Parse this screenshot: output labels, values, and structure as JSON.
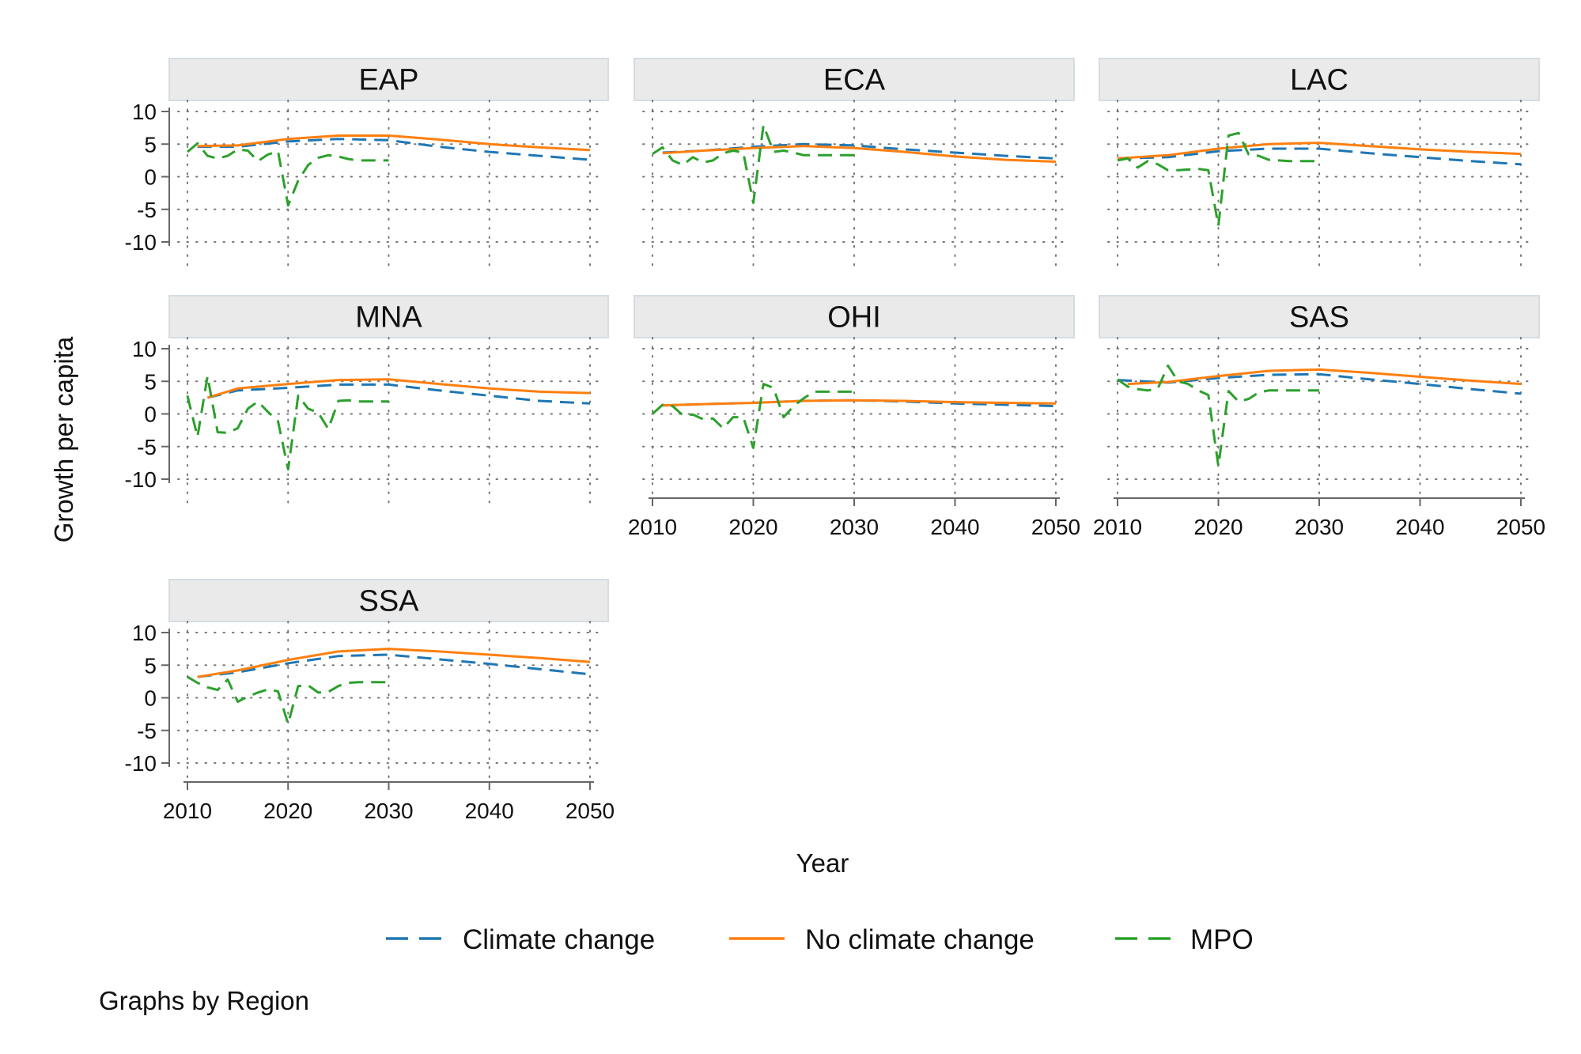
{
  "chart_data": {
    "type": "line",
    "xlabel": "Year",
    "ylabel": "Growth per capita",
    "xlim": [
      2010,
      2050
    ],
    "ylim": [
      -10,
      10
    ],
    "xticks": [
      2010,
      2020,
      2030,
      2040,
      2050
    ],
    "yticks": [
      10,
      5,
      0,
      -5,
      -10
    ],
    "ytick_labels": [
      "10",
      "5",
      "0",
      "-5",
      "-10"
    ],
    "grid": true,
    "legend_position": "bottom",
    "note": "Graphs by Region",
    "series_styles": [
      {
        "key": "cc",
        "name": "Climate change",
        "color": "#1f77b4",
        "dash": "dashed"
      },
      {
        "key": "ncc",
        "name": "No climate change",
        "color": "#ff7f0e",
        "dash": "solid"
      },
      {
        "key": "mpo",
        "name": "MPO",
        "color": "#2ca02c",
        "dash": "dashed"
      }
    ],
    "panels": [
      {
        "title": "EAP",
        "cc": {
          "x": [
            2011,
            2015,
            2020,
            2025,
            2030,
            2035,
            2040,
            2045,
            2050
          ],
          "y": [
            4.6,
            4.6,
            5.4,
            5.8,
            5.6,
            4.6,
            3.8,
            3.2,
            2.6
          ]
        },
        "ncc": {
          "x": [
            2011,
            2015,
            2020,
            2025,
            2030,
            2035,
            2040,
            2045,
            2050
          ],
          "y": [
            4.7,
            4.8,
            5.8,
            6.3,
            6.3,
            5.7,
            5.0,
            4.5,
            4.1
          ]
        },
        "mpo": {
          "x": [
            2010,
            2011,
            2012,
            2013,
            2014,
            2015,
            2016,
            2017,
            2018,
            2019,
            2020,
            2021,
            2022,
            2023,
            2024,
            2025,
            2026,
            2027,
            2028,
            2029,
            2030
          ],
          "y": [
            3.8,
            5.1,
            3.2,
            2.8,
            3.2,
            4.2,
            4.0,
            2.4,
            3.4,
            3.9,
            -4.4,
            -0.6,
            1.8,
            2.9,
            3.3,
            3.1,
            2.7,
            2.5,
            2.5,
            2.5,
            2.5
          ]
        }
      },
      {
        "title": "ECA",
        "cc": {
          "x": [
            2011,
            2015,
            2020,
            2025,
            2030,
            2035,
            2040,
            2045,
            2050
          ],
          "y": [
            3.7,
            4.0,
            4.6,
            5.0,
            4.8,
            4.2,
            3.7,
            3.2,
            2.8
          ]
        },
        "ncc": {
          "x": [
            2011,
            2015,
            2020,
            2025,
            2030,
            2035,
            2040,
            2045,
            2050
          ],
          "y": [
            3.6,
            4.0,
            4.4,
            4.7,
            4.4,
            3.8,
            3.1,
            2.6,
            2.3
          ]
        },
        "mpo": {
          "x": [
            2010,
            2011,
            2012,
            2013,
            2014,
            2015,
            2016,
            2017,
            2018,
            2019,
            2020,
            2021,
            2022,
            2023,
            2024,
            2025,
            2026,
            2027,
            2028,
            2029,
            2030
          ],
          "y": [
            3.5,
            4.5,
            2.5,
            1.8,
            3.0,
            2.2,
            2.5,
            3.6,
            4.0,
            3.7,
            -4.0,
            7.9,
            3.8,
            4.0,
            3.7,
            3.3,
            3.3,
            3.3,
            3.3,
            3.3,
            3.3
          ]
        }
      },
      {
        "title": "LAC",
        "cc": {
          "x": [
            2010,
            2015,
            2020,
            2025,
            2030,
            2035,
            2040,
            2045,
            2050
          ],
          "y": [
            2.8,
            3.0,
            3.9,
            4.3,
            4.3,
            3.6,
            3.0,
            2.4,
            1.9
          ]
        },
        "ncc": {
          "x": [
            2010,
            2015,
            2020,
            2025,
            2030,
            2035,
            2040,
            2045,
            2050
          ],
          "y": [
            2.8,
            3.3,
            4.3,
            5.0,
            5.2,
            4.7,
            4.2,
            3.8,
            3.5
          ]
        },
        "mpo": {
          "x": [
            2010,
            2011,
            2012,
            2013,
            2014,
            2015,
            2016,
            2017,
            2018,
            2019,
            2020,
            2021,
            2022,
            2023,
            2024,
            2025,
            2026,
            2027,
            2028,
            2029,
            2030
          ],
          "y": [
            2.5,
            2.8,
            1.4,
            2.4,
            1.9,
            1.0,
            1.0,
            1.1,
            1.2,
            1.0,
            -7.5,
            6.3,
            6.7,
            3.4,
            3.2,
            2.6,
            2.5,
            2.4,
            2.4,
            2.4,
            2.4
          ]
        }
      },
      {
        "title": "MNA",
        "cc": {
          "x": [
            2012,
            2015,
            2020,
            2025,
            2030,
            2035,
            2040,
            2045,
            2050
          ],
          "y": [
            2.5,
            3.6,
            4.0,
            4.5,
            4.5,
            3.6,
            2.8,
            2.0,
            1.6
          ]
        },
        "ncc": {
          "x": [
            2012,
            2015,
            2020,
            2025,
            2030,
            2035,
            2040,
            2045,
            2050
          ],
          "y": [
            2.5,
            3.9,
            4.6,
            5.2,
            5.3,
            4.6,
            3.9,
            3.4,
            3.2
          ]
        },
        "mpo": {
          "x": [
            2010,
            2011,
            2012,
            2013,
            2014,
            2015,
            2016,
            2017,
            2018,
            2019,
            2020,
            2021,
            2022,
            2023,
            2024,
            2025,
            2026,
            2027,
            2028,
            2029,
            2030
          ],
          "y": [
            2.8,
            -3.5,
            5.8,
            -2.8,
            -2.9,
            -2.2,
            0.8,
            1.9,
            0.3,
            -1.1,
            -8.5,
            2.8,
            0.8,
            0.2,
            -2.3,
            2.0,
            2.1,
            1.9,
            1.9,
            1.9,
            1.9
          ]
        }
      },
      {
        "title": "OHI",
        "cc": {
          "x": [
            2011,
            2015,
            2020,
            2025,
            2030,
            2035,
            2040,
            2045,
            2050
          ],
          "y": [
            1.3,
            1.5,
            1.7,
            2.0,
            2.1,
            1.9,
            1.6,
            1.4,
            1.2
          ]
        },
        "ncc": {
          "x": [
            2011,
            2015,
            2020,
            2025,
            2030,
            2035,
            2040,
            2045,
            2050
          ],
          "y": [
            1.3,
            1.5,
            1.7,
            2.0,
            2.1,
            2.0,
            1.8,
            1.7,
            1.6
          ]
        },
        "mpo": {
          "x": [
            2010,
            2011,
            2012,
            2013,
            2014,
            2015,
            2016,
            2017,
            2018,
            2019,
            2020,
            2021,
            2022,
            2023,
            2024,
            2025,
            2026,
            2027,
            2028,
            2029,
            2030
          ],
          "y": [
            0.0,
            1.4,
            1.2,
            -0.2,
            -0.1,
            -0.8,
            -0.7,
            -2.2,
            -0.5,
            -0.5,
            -5.2,
            4.6,
            4.0,
            -0.5,
            1.2,
            2.4,
            3.4,
            3.4,
            3.4,
            3.4,
            3.4
          ]
        }
      },
      {
        "title": "SAS",
        "cc": {
          "x": [
            2010,
            2015,
            2020,
            2025,
            2030,
            2035,
            2040,
            2045,
            2050
          ],
          "y": [
            5.2,
            4.8,
            5.5,
            6.0,
            6.1,
            5.3,
            4.6,
            3.8,
            3.1
          ]
        },
        "ncc": {
          "x": [
            2011,
            2015,
            2020,
            2025,
            2030,
            2035,
            2040,
            2045,
            2050
          ],
          "y": [
            4.6,
            4.9,
            5.8,
            6.6,
            6.8,
            6.3,
            5.7,
            5.1,
            4.6
          ]
        },
        "mpo": {
          "x": [
            2010,
            2011,
            2012,
            2013,
            2014,
            2015,
            2016,
            2017,
            2018,
            2019,
            2020,
            2021,
            2022,
            2023,
            2024,
            2025,
            2026,
            2027,
            2028,
            2029,
            2030
          ],
          "y": [
            5.3,
            4.2,
            3.8,
            3.6,
            3.9,
            7.4,
            5.0,
            4.6,
            3.6,
            2.9,
            -8.0,
            3.5,
            1.9,
            2.3,
            3.3,
            3.6,
            3.6,
            3.6,
            3.6,
            3.6,
            3.6
          ]
        }
      },
      {
        "title": "SSA",
        "cc": {
          "x": [
            2011,
            2015,
            2020,
            2025,
            2030,
            2035,
            2040,
            2045,
            2050
          ],
          "y": [
            3.2,
            3.9,
            5.3,
            6.4,
            6.6,
            5.9,
            5.2,
            4.4,
            3.6
          ]
        },
        "ncc": {
          "x": [
            2011,
            2015,
            2020,
            2025,
            2030,
            2035,
            2040,
            2045,
            2050
          ],
          "y": [
            3.2,
            4.2,
            5.8,
            7.1,
            7.5,
            7.1,
            6.6,
            6.1,
            5.5
          ]
        },
        "mpo": {
          "x": [
            2010,
            2011,
            2012,
            2013,
            2014,
            2015,
            2016,
            2017,
            2018,
            2019,
            2020,
            2021,
            2022,
            2023,
            2024,
            2025,
            2026,
            2027,
            2028,
            2029,
            2030
          ],
          "y": [
            3.2,
            2.3,
            1.6,
            1.2,
            2.8,
            -0.6,
            0.2,
            0.8,
            1.3,
            1.0,
            -4.0,
            1.8,
            1.9,
            0.8,
            0.9,
            1.8,
            2.3,
            2.4,
            2.4,
            2.4,
            2.4
          ]
        }
      }
    ]
  }
}
